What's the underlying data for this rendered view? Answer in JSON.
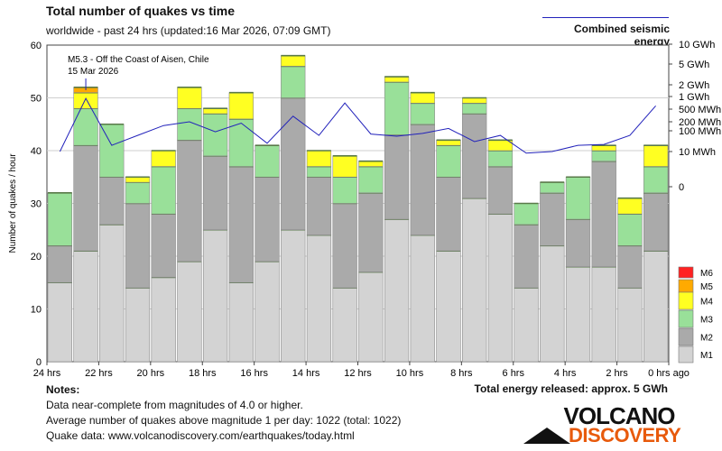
{
  "header": {
    "title": "Total number of quakes vs time",
    "subtitle": "worldwide - past 24 hrs (updated:16 Mar 2026, 07:09 GMT)",
    "energy_legend": "Combined seismic energy"
  },
  "notes": {
    "heading": "Notes:",
    "line1": "Data near-complete from magnitudes of 4.0 or higher.",
    "line2": "Average number of quakes above magnitude 1 per day: 1022 (total: 1022)",
    "line3": "Quake data: www.volcanodiscovery.com/earthquakes/today.html"
  },
  "total_energy": "Total energy released: approx. 5 GWh",
  "logo": {
    "line1": "VOLCANO",
    "line2": "DISCOVERY"
  },
  "colors": {
    "M1": "#d3d3d3",
    "M2": "#aaaaaa",
    "M3": "#99e099",
    "M4": "#ffff22",
    "M5": "#ffaa00",
    "M6": "#ff2222",
    "energy_line": "#2222bb"
  },
  "chart_data": {
    "type": "bar",
    "stacked": true,
    "ylabel": "Number of quakes / hour",
    "ylim": [
      0,
      60
    ],
    "yticks": [
      0,
      10,
      20,
      30,
      40,
      50,
      60
    ],
    "x_tick_labels": [
      "24 hrs",
      "22 hrs",
      "20 hrs",
      "18 hrs",
      "16 hrs",
      "14 hrs",
      "12 hrs",
      "10 hrs",
      "8 hrs",
      "6 hrs",
      "4 hrs",
      "2 hrs",
      "0 hrs ago"
    ],
    "legend": [
      "M6",
      "M5",
      "M4",
      "M3",
      "M2",
      "M1"
    ],
    "series": [
      {
        "name": "M1",
        "values": [
          15,
          21,
          26,
          14,
          16,
          19,
          25,
          15,
          19,
          25,
          24,
          14,
          17,
          27,
          24,
          21,
          31,
          28,
          14,
          22,
          18,
          18,
          14,
          21
        ]
      },
      {
        "name": "M2",
        "values": [
          7,
          20,
          9,
          16,
          12,
          23,
          14,
          22,
          16,
          25,
          11,
          16,
          15,
          16,
          21,
          14,
          16,
          9,
          12,
          10,
          9,
          20,
          8,
          11
        ]
      },
      {
        "name": "M3",
        "values": [
          10,
          7,
          10,
          4,
          9,
          6,
          8,
          9,
          6,
          6,
          2,
          5,
          5,
          10,
          4,
          6,
          2,
          3,
          4,
          2,
          8,
          2,
          6,
          5
        ]
      },
      {
        "name": "M4",
        "values": [
          0,
          3,
          0,
          1,
          3,
          4,
          1,
          5,
          0,
          2,
          3,
          4,
          1,
          1,
          2,
          1,
          1,
          2,
          0,
          0,
          0,
          1,
          3,
          4
        ]
      },
      {
        "name": "M5",
        "values": [
          0,
          1,
          0,
          0,
          0,
          0,
          0,
          0,
          0,
          0,
          0,
          0,
          0,
          0,
          0,
          0,
          0,
          0,
          0,
          0,
          0,
          0,
          0,
          0
        ]
      },
      {
        "name": "M6",
        "values": [
          0,
          0,
          0,
          0,
          0,
          0,
          0,
          0,
          0,
          0,
          0,
          0,
          0,
          0,
          0,
          0,
          0,
          0,
          0,
          0,
          0,
          0,
          0,
          0
        ]
      }
    ],
    "energy": {
      "name": "Combined seismic energy",
      "axis_labels": [
        "10 GWh",
        "5 GWh",
        "2 GWh",
        "1 GWh",
        "500 MWh",
        "200 MWh",
        "100 MWh",
        "10 MWh",
        "0"
      ],
      "axis_values_mwh": [
        10000,
        5000,
        2000,
        1000,
        500,
        200,
        100,
        10,
        0
      ],
      "values_mwh": [
        10,
        900,
        20,
        60,
        150,
        200,
        90,
        180,
        25,
        300,
        60,
        700,
        70,
        55,
        75,
        120,
        30,
        60,
        9,
        10,
        20,
        22,
        60,
        600
      ]
    },
    "annotation": {
      "bar_index": 1,
      "line1": "M5.3 - Off the Coast of Aisen, Chile",
      "line2": "15 Mar 2026"
    }
  }
}
